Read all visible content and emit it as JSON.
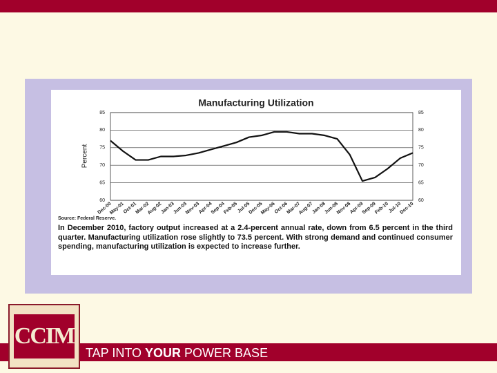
{
  "chart_data": {
    "type": "line",
    "title": "Manufacturing Utilization",
    "y_label": "Percent",
    "categories": [
      "Dec-00",
      "May-01",
      "Oct-01",
      "Mar-02",
      "Aug-02",
      "Jan-03",
      "Jun-03",
      "Nov-03",
      "Apr-04",
      "Sep-04",
      "Feb-05",
      "Jul-05",
      "Dec-05",
      "May-06",
      "Oct-06",
      "Mar-07",
      "Aug-07",
      "Jan-08",
      "Jun-08",
      "Nov-08",
      "Apr-09",
      "Sep-09",
      "Feb-10",
      "Jul-10",
      "Dec-10"
    ],
    "series": [
      {
        "name": "Manufacturing Utilization",
        "color": "#111111",
        "values": [
          77,
          74,
          71.5,
          71.5,
          72.5,
          72.5,
          72.8,
          73.5,
          74.5,
          75.5,
          76.5,
          78,
          78.5,
          79.5,
          79.5,
          79,
          79,
          78.5,
          77.5,
          73,
          65.5,
          66.5,
          69,
          72,
          73.5
        ]
      }
    ],
    "ylim": [
      60,
      85
    ],
    "yticks": [
      60,
      65,
      70,
      75,
      80,
      85
    ],
    "grid": true
  },
  "source": "Source: Federal Reserve.",
  "description": "In December 2010, factory output increased at a 2.4-percent annual rate, down from 6.5 percent in the third quarter. Manufacturing utilization rose slightly to 73.5 percent. With strong demand and continued consumer spending, manufacturing utilization is expected to increase further.",
  "footer": {
    "logo": "CCIM",
    "tagline": [
      "TAP INTO ",
      "YOUR",
      " POWER BASE"
    ]
  }
}
